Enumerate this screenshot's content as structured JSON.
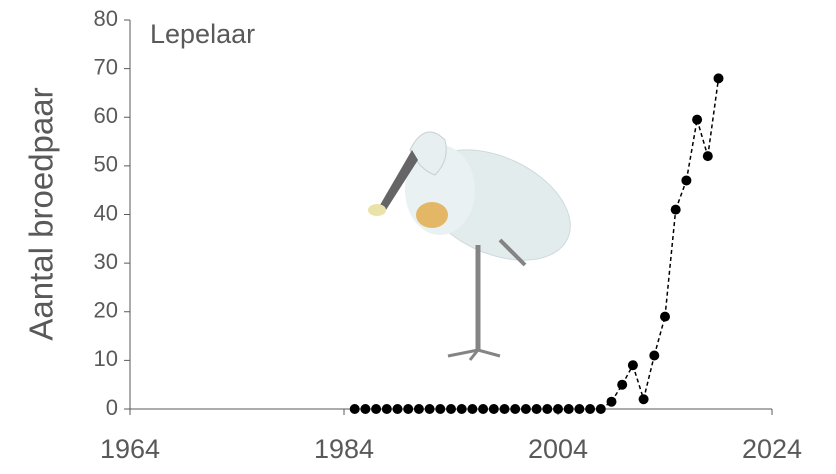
{
  "chart_data": {
    "type": "scatter",
    "title": "Lepelaar",
    "y_label": "Aantal broedpaar",
    "x": [
      1985,
      1986,
      1987,
      1988,
      1989,
      1990,
      1991,
      1992,
      1993,
      1994,
      1995,
      1996,
      1997,
      1998,
      1999,
      2000,
      2001,
      2002,
      2003,
      2004,
      2005,
      2006,
      2007,
      2008,
      2009,
      2010,
      2011,
      2012,
      2013,
      2014,
      2015,
      2016,
      2017,
      2018,
      2019
    ],
    "values": [
      0,
      0,
      0,
      0,
      0,
      0,
      0,
      0,
      0,
      0,
      0,
      0,
      0,
      0,
      0,
      0,
      0,
      0,
      0,
      0,
      0,
      0,
      0,
      0,
      1.5,
      5,
      9,
      2,
      11,
      19,
      41,
      47,
      59.5,
      52,
      68
    ],
    "color": "#000000",
    "xlim": [
      1964,
      2024
    ],
    "xticks": [
      1964,
      1984,
      2004,
      2024
    ],
    "ylim": [
      0,
      80
    ],
    "yticks": [
      0,
      10,
      20,
      30,
      40,
      50,
      60,
      70,
      80
    ]
  }
}
